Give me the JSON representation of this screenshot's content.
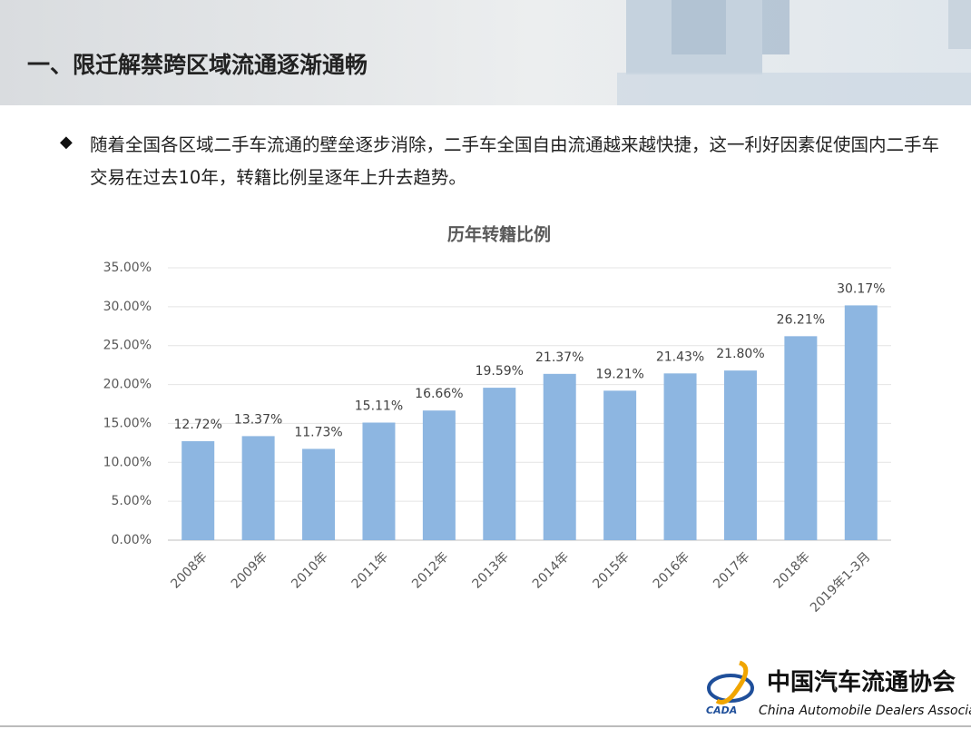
{
  "header": {
    "title": "一、限迁解禁跨区域流通逐渐通畅"
  },
  "bullet": "随着全国各区域二手车流通的壁垒逐步消除，二手车全国自由流通越来越快捷，这一利好因素促使国内二手车交易在过去10年，转籍比例呈逐年上升去趋势。",
  "chart_data": {
    "type": "bar",
    "title": "历年转籍比例",
    "categories": [
      "2008年",
      "2009年",
      "2010年",
      "2011年",
      "2012年",
      "2013年",
      "2014年",
      "2015年",
      "2016年",
      "2017年",
      "2018年",
      "2019年1-3月"
    ],
    "values": [
      12.72,
      13.37,
      11.73,
      15.11,
      16.66,
      19.59,
      21.37,
      19.21,
      21.43,
      21.8,
      26.21,
      30.17
    ],
    "value_labels": [
      "12.72%",
      "13.37%",
      "11.73%",
      "15.11%",
      "16.66%",
      "19.59%",
      "21.37%",
      "19.21%",
      "21.43%",
      "21.80%",
      "26.21%",
      "30.17%"
    ],
    "color": "#8db6e1",
    "ylim": [
      0,
      35
    ],
    "yticks": [
      {
        "value": 0,
        "label": "0.00%"
      },
      {
        "value": 5,
        "label": "5.00%"
      },
      {
        "value": 10,
        "label": "10.00%"
      },
      {
        "value": 15,
        "label": "15.00%"
      },
      {
        "value": 20,
        "label": "20.00%"
      },
      {
        "value": 25,
        "label": "25.00%"
      },
      {
        "value": 30,
        "label": "30.00%"
      },
      {
        "value": 35,
        "label": "35.00%"
      }
    ],
    "grid": true
  },
  "logo": {
    "abbr": "CADA",
    "name_cn": "中国汽车流通协会",
    "name_en": "China Automobile Dealers Association"
  }
}
